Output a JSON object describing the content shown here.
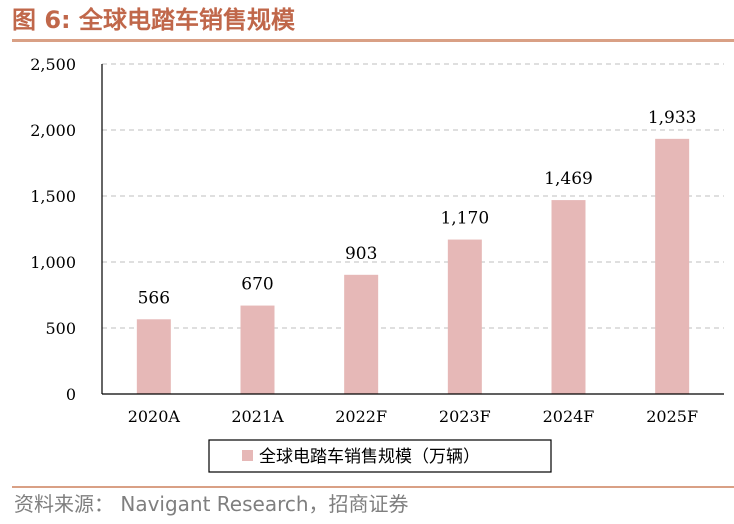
{
  "header": {
    "title": "图 6:  全球电踏车销售规模",
    "title_color": "#c0674a"
  },
  "source": {
    "text": "资料来源：  Navigant Research，招商证券",
    "color": "#7f7f7f"
  },
  "chart_data": {
    "type": "bar",
    "categories": [
      "2020A",
      "2021A",
      "2022F",
      "2023F",
      "2024F",
      "2025F"
    ],
    "series": [
      {
        "name": "全球电踏车销售规模（万辆）",
        "values": [
          566,
          670,
          903,
          1170,
          1469,
          1933
        ],
        "value_labels": [
          "566",
          "670",
          "903",
          "1,170",
          "1,469",
          "1,933"
        ],
        "color": "#e6b8b7"
      }
    ],
    "ylim": [
      0,
      2500
    ],
    "yticks": [
      0,
      500,
      1000,
      1500,
      2000,
      2500
    ],
    "ytick_labels": [
      "0",
      "500",
      "1,000",
      "1,500",
      "2,000",
      "2,500"
    ],
    "grid": true,
    "legend": "bottom"
  }
}
